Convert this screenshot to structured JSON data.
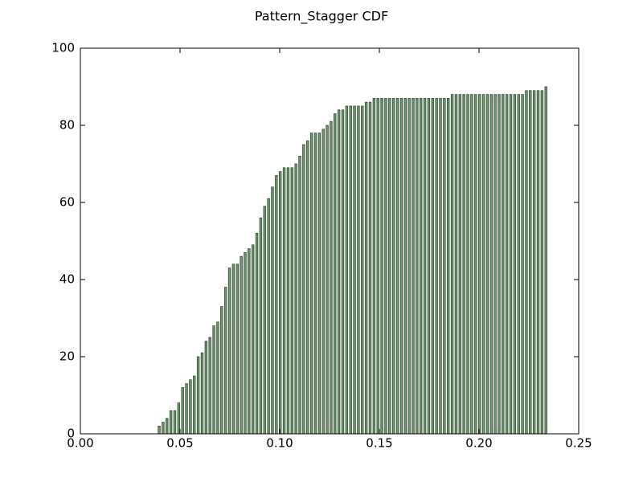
{
  "chart_data": {
    "type": "bar",
    "title": "Pattern_Stagger CDF",
    "color": "#6b9a6b",
    "edgecolor": "#3a4a3a",
    "x": [
      0.039,
      0.04096,
      0.04292,
      0.04488,
      0.04684,
      0.0488,
      0.05076,
      0.05272,
      0.05468,
      0.05664,
      0.0586,
      0.06056,
      0.06252,
      0.06448,
      0.06644,
      0.0684,
      0.07036,
      0.07232,
      0.07428,
      0.07624,
      0.0782,
      0.08016,
      0.08212,
      0.08408,
      0.08604,
      0.088,
      0.08996,
      0.09192,
      0.09388,
      0.09584,
      0.0978,
      0.09976,
      0.10172,
      0.10368,
      0.10564,
      0.1076,
      0.10956,
      0.11152,
      0.11348,
      0.11544,
      0.1174,
      0.11936,
      0.12132,
      0.12328,
      0.12524,
      0.1272,
      0.12916,
      0.13112,
      0.13308,
      0.13504,
      0.137,
      0.13896,
      0.14092,
      0.14288,
      0.14484,
      0.1468,
      0.14876,
      0.15072,
      0.15268,
      0.15464,
      0.1566,
      0.15856,
      0.16052,
      0.16248,
      0.16444,
      0.1664,
      0.16836,
      0.17032,
      0.17228,
      0.17424,
      0.1762,
      0.17816,
      0.18012,
      0.18208,
      0.18404,
      0.186,
      0.18796,
      0.18992,
      0.19188,
      0.19384,
      0.1958,
      0.19776,
      0.19972,
      0.20168,
      0.20364,
      0.2056,
      0.20756,
      0.20952,
      0.21148,
      0.21344,
      0.2154,
      0.21736,
      0.21932,
      0.22128,
      0.22324,
      0.2252,
      0.22716,
      0.22912,
      0.23108,
      0.23304
    ],
    "values": [
      2,
      3,
      4,
      6,
      6,
      8,
      12,
      13,
      14,
      15,
      20,
      21,
      24,
      25,
      28,
      29,
      33,
      38,
      43,
      44,
      44,
      46,
      47,
      48,
      49,
      52,
      56,
      59,
      61,
      64,
      67,
      68,
      69,
      69,
      69,
      70,
      72,
      75,
      76,
      78,
      78,
      78,
      79,
      80,
      81,
      83,
      84,
      84,
      85,
      85,
      85,
      85,
      85,
      86,
      86,
      87,
      87,
      87,
      87,
      87,
      87,
      87,
      87,
      87,
      87,
      87,
      87,
      87,
      87,
      87,
      87,
      87,
      87,
      87,
      87,
      88,
      88,
      88,
      88,
      88,
      88,
      88,
      88,
      88,
      88,
      88,
      88,
      88,
      88,
      88,
      88,
      88,
      88,
      88,
      89,
      89,
      89,
      89,
      89,
      90
    ],
    "xlim": [
      0,
      0.25
    ],
    "xticks": [
      {
        "value": 0,
        "label": "0.00"
      },
      {
        "value": 0.05,
        "label": "0.05"
      },
      {
        "value": 0.1,
        "label": "0.10"
      },
      {
        "value": 0.15,
        "label": "0.15"
      },
      {
        "value": 0.2,
        "label": "0.20"
      },
      {
        "value": 0.25,
        "label": "0.25"
      }
    ],
    "ylim": [
      0,
      100
    ],
    "yticks": [
      0,
      20,
      40,
      60,
      80,
      100
    ]
  }
}
